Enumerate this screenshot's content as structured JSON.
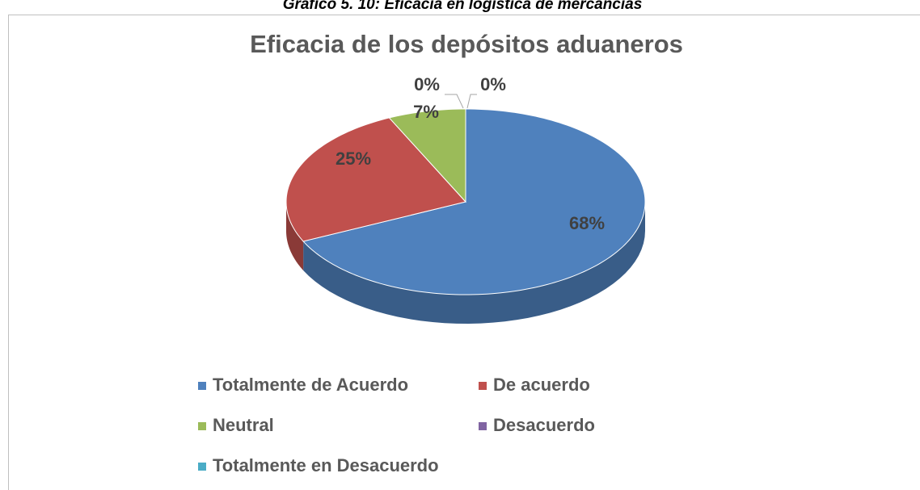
{
  "caption": "Gráfico 5. 10: Eficacia en logística de mercancías",
  "chart_data": {
    "type": "pie",
    "title": "Eficacia de los depósitos aduaneros",
    "categories": [
      "Totalmente de Acuerdo",
      "De acuerdo",
      "Neutral",
      "Desacuerdo",
      "Totalmente en Desacuerdo"
    ],
    "values": [
      68,
      25,
      7,
      0,
      0
    ],
    "value_labels": [
      "68%",
      "25%",
      "7%",
      "0%",
      "0%"
    ],
    "colors": [
      "#4f81bd",
      "#c0504d",
      "#9bbb59",
      "#8064a2",
      "#4bacc6"
    ],
    "legend": "bottom"
  }
}
